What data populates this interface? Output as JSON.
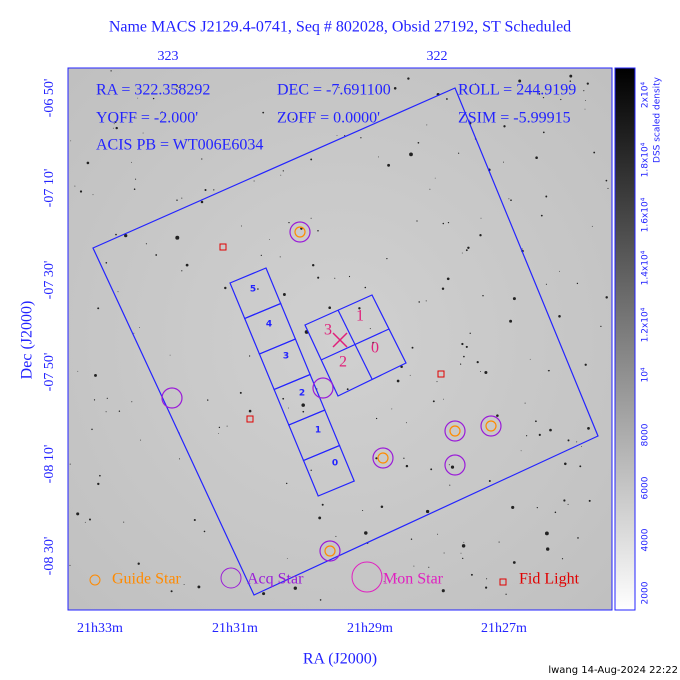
{
  "header": {
    "title": "Name MACS J2129.4-0741, Seq # 802028, Obsid 27192, ST Scheduled"
  },
  "pointing": [
    "RA = 322.358292",
    "DEC = -7.691100",
    "ROLL = 244.9199",
    "YOFF =  -2.000'",
    "ZOFF =  0.0000'",
    "ZSIM = -5.99915",
    "ACIS PB = WT006E6034"
  ],
  "top_axis": [
    "323",
    "322"
  ],
  "left_axis": {
    "label": "Dec (J2000)",
    "ticks": [
      "-06 50'",
      "-07 10'",
      "-07 30'",
      "-07 50'",
      "-08 10'",
      "-08 30'"
    ]
  },
  "bottom_axis": {
    "label": "RA (J2000)",
    "ticks": [
      "21h33m",
      "21h31m",
      "21h29m",
      "21h27m"
    ]
  },
  "acis_i_chips": [
    "3",
    "1",
    "2",
    "0"
  ],
  "acis_s_chips": [
    "5",
    "4",
    "3",
    "2",
    "1",
    "0"
  ],
  "legend": [
    "Guide Star",
    "Acq Star",
    "Mon Star",
    "Fid Light"
  ],
  "colorbar": {
    "label": "DSS scaled density",
    "ticks": [
      "2000",
      "4000",
      "6000",
      "8000",
      "10⁴",
      "1.2x10⁴",
      "1.4x10⁴",
      "1.6x10⁴",
      "1.8x10⁴",
      "2x10⁴"
    ]
  },
  "footer": "lwang 14-Aug-2024 22:22"
}
